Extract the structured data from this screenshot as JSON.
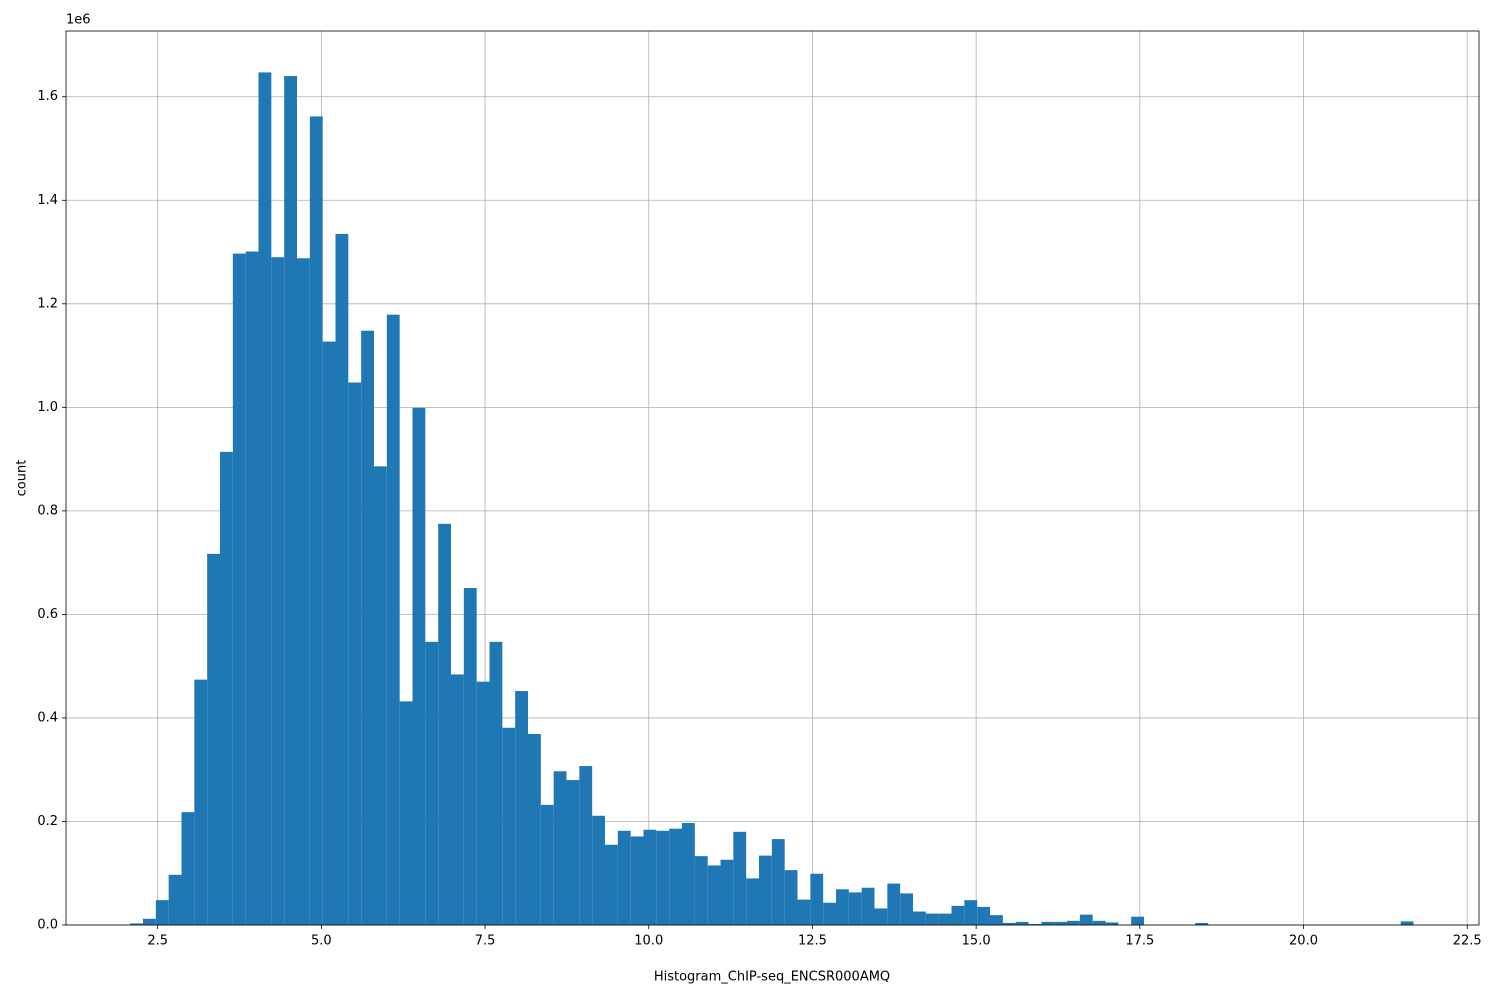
{
  "chart_data": {
    "type": "histogram",
    "x_label": "Histogram_ChIP-seq_ENCSR000AMQ",
    "y_label": "count",
    "y_offset_label": "1e6",
    "color": "#1f77b4",
    "grid": true,
    "bins": [
      2.08,
      2.276,
      2.472,
      2.668,
      2.864,
      3.06,
      3.256,
      3.452,
      3.648,
      3.844,
      4.04,
      4.236,
      4.432,
      4.628,
      4.824,
      5.02,
      5.216,
      5.412,
      5.608,
      5.804,
      6.0,
      6.196,
      6.392,
      6.588,
      6.784,
      6.98,
      7.176,
      7.372,
      7.568,
      7.764,
      7.96,
      8.156,
      8.352,
      8.548,
      8.744,
      8.94,
      9.136,
      9.332,
      9.528,
      9.724,
      9.92,
      10.116,
      10.312,
      10.508,
      10.704,
      10.9,
      11.096,
      11.292,
      11.488,
      11.684,
      11.88,
      12.076,
      12.272,
      12.468,
      12.664,
      12.86,
      13.056,
      13.252,
      13.448,
      13.644,
      13.84,
      14.036,
      14.232,
      14.428,
      14.624,
      14.82,
      15.016,
      15.212,
      15.408,
      15.604,
      15.8,
      15.996,
      16.192,
      16.388,
      16.584,
      16.78,
      16.976,
      17.172,
      17.368,
      17.564,
      17.76,
      17.956,
      18.152,
      18.348,
      18.544,
      18.74,
      18.936,
      19.132,
      19.328,
      19.524,
      19.72,
      19.916,
      20.112,
      20.308,
      20.504,
      20.7,
      20.896,
      21.092,
      21.288,
      21.484,
      21.68
    ],
    "counts": [
      3000,
      12000,
      48000,
      97000,
      218000,
      474000,
      717000,
      914000,
      1297000,
      1301000,
      1647000,
      1290000,
      1640000,
      1288000,
      1562000,
      1127000,
      1335000,
      1048000,
      1148000,
      886000,
      1179000,
      432000,
      999000,
      547000,
      775000,
      484000,
      651000,
      470000,
      547000,
      381000,
      452000,
      369000,
      232000,
      297000,
      280000,
      307000,
      211000,
      155000,
      182000,
      171000,
      184000,
      182000,
      186000,
      197000,
      133000,
      115000,
      126000,
      180000,
      90000,
      134000,
      166000,
      106000,
      49000,
      99000,
      43000,
      69000,
      63000,
      72000,
      32000,
      80000,
      61000,
      26000,
      22000,
      22000,
      37000,
      48000,
      35000,
      19000,
      4000,
      6000,
      2000,
      6000,
      6000,
      8000,
      20000,
      8000,
      5000,
      0,
      16000,
      0,
      0,
      0,
      0,
      4000,
      0,
      0,
      0,
      0,
      0,
      0,
      0,
      0,
      0,
      0,
      0,
      0,
      0,
      0,
      0,
      7000
    ],
    "xlim": [
      1.1,
      22.68
    ],
    "ylim": [
      0,
      1727000
    ],
    "xticks": [
      2.5,
      {
        "value": 5,
        "label": "5.0"
      },
      7.5,
      {
        "value": 10,
        "label": "10.0"
      },
      12.5,
      {
        "value": 15,
        "label": "15.0"
      },
      17.5,
      {
        "value": 20,
        "label": "20.0"
      },
      22.5
    ],
    "yticks": [
      {
        "value": 0,
        "label": "0.0"
      },
      {
        "value": 200000,
        "label": "0.2"
      },
      {
        "value": 400000,
        "label": "0.4"
      },
      {
        "value": 600000,
        "label": "0.6"
      },
      {
        "value": 800000,
        "label": "0.8"
      },
      {
        "value": 1000000,
        "label": "1.0"
      },
      {
        "value": 1200000,
        "label": "1.2"
      },
      {
        "value": 1400000,
        "label": "1.4"
      },
      {
        "value": 1600000,
        "label": "1.6"
      }
    ]
  }
}
